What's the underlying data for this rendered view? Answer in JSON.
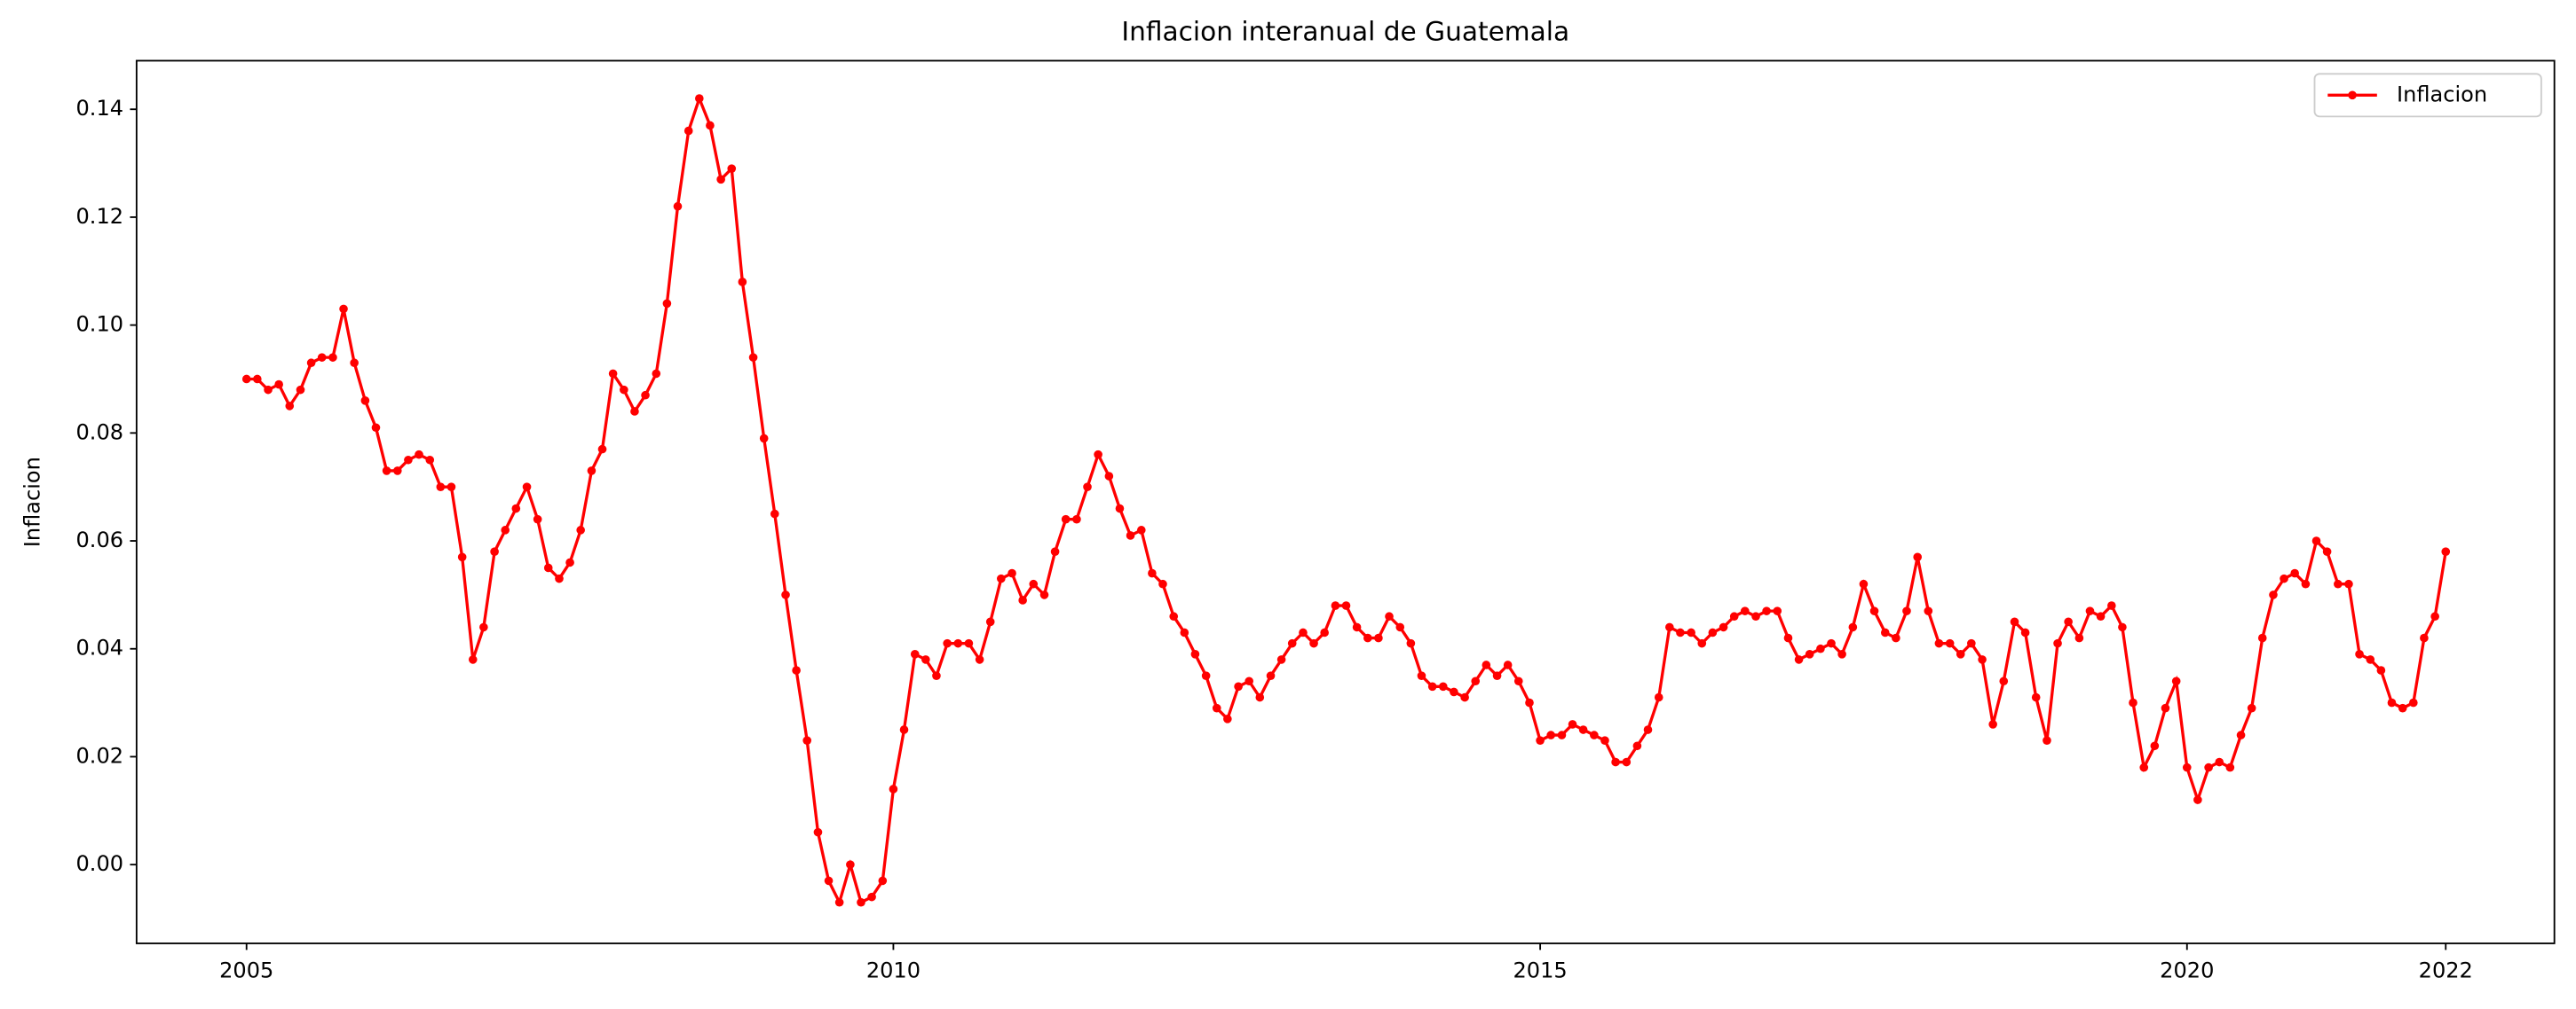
{
  "chart_data": {
    "type": "line",
    "title": "Inflacion interanual de Guatemala",
    "y_label": "Inflacion",
    "x": [
      2005,
      2005.083,
      2005.167,
      2005.25,
      2005.333,
      2005.417,
      2005.5,
      2005.583,
      2005.667,
      2005.75,
      2005.833,
      2005.917,
      2006,
      2006.083,
      2006.167,
      2006.25,
      2006.333,
      2006.417,
      2006.5,
      2006.583,
      2006.667,
      2006.75,
      2006.833,
      2006.917,
      2007,
      2007.083,
      2007.167,
      2007.25,
      2007.333,
      2007.417,
      2007.5,
      2007.583,
      2007.667,
      2007.75,
      2007.833,
      2007.917,
      2008,
      2008.083,
      2008.167,
      2008.25,
      2008.333,
      2008.417,
      2008.5,
      2008.583,
      2008.667,
      2008.75,
      2008.833,
      2008.917,
      2009,
      2009.083,
      2009.167,
      2009.25,
      2009.333,
      2009.417,
      2009.5,
      2009.583,
      2009.667,
      2009.75,
      2009.833,
      2009.917,
      2010,
      2010.083,
      2010.167,
      2010.25,
      2010.333,
      2010.417,
      2010.5,
      2010.583,
      2010.667,
      2010.75,
      2010.833,
      2010.917,
      2011,
      2011.083,
      2011.167,
      2011.25,
      2011.333,
      2011.417,
      2011.5,
      2011.583,
      2011.667,
      2011.75,
      2011.833,
      2011.917,
      2012,
      2012.083,
      2012.167,
      2012.25,
      2012.333,
      2012.417,
      2012.5,
      2012.583,
      2012.667,
      2012.75,
      2012.833,
      2012.917,
      2013,
      2013.083,
      2013.167,
      2013.25,
      2013.333,
      2013.417,
      2013.5,
      2013.583,
      2013.667,
      2013.75,
      2013.833,
      2013.917,
      2014,
      2014.083,
      2014.167,
      2014.25,
      2014.333,
      2014.417,
      2014.5,
      2014.583,
      2014.667,
      2014.75,
      2014.833,
      2014.917,
      2015,
      2015.083,
      2015.167,
      2015.25,
      2015.333,
      2015.417,
      2015.5,
      2015.583,
      2015.667,
      2015.75,
      2015.833,
      2015.917,
      2016,
      2016.083,
      2016.167,
      2016.25,
      2016.333,
      2016.417,
      2016.5,
      2016.583,
      2016.667,
      2016.75,
      2016.833,
      2016.917,
      2017,
      2017.083,
      2017.167,
      2017.25,
      2017.333,
      2017.417,
      2017.5,
      2017.583,
      2017.667,
      2017.75,
      2017.833,
      2017.917,
      2018,
      2018.083,
      2018.167,
      2018.25,
      2018.333,
      2018.417,
      2018.5,
      2018.583,
      2018.667,
      2018.75,
      2018.833,
      2018.917,
      2019,
      2019.083,
      2019.167,
      2019.25,
      2019.333,
      2019.417,
      2019.5,
      2019.583,
      2019.667,
      2019.75,
      2019.833,
      2019.917,
      2020,
      2020.083,
      2020.167,
      2020.25,
      2020.333,
      2020.417,
      2020.5,
      2020.583,
      2020.667,
      2020.75,
      2020.833,
      2020.917,
      2021,
      2021.083,
      2021.167,
      2021.25,
      2021.333,
      2021.417,
      2021.5,
      2021.583,
      2021.667,
      2021.75,
      2021.833,
      2021.917,
      2022
    ],
    "series": [
      {
        "name": "Inflacion",
        "color": "#ff0000",
        "values": [
          0.09,
          0.09,
          0.088,
          0.089,
          0.085,
          0.088,
          0.093,
          0.094,
          0.094,
          0.103,
          0.093,
          0.086,
          0.081,
          0.073,
          0.073,
          0.075,
          0.076,
          0.075,
          0.07,
          0.07,
          0.057,
          0.038,
          0.044,
          0.058,
          0.062,
          0.066,
          0.07,
          0.064,
          0.055,
          0.053,
          0.056,
          0.062,
          0.073,
          0.077,
          0.091,
          0.088,
          0.084,
          0.087,
          0.091,
          0.104,
          0.122,
          0.136,
          0.142,
          0.137,
          0.127,
          0.129,
          0.108,
          0.094,
          0.079,
          0.065,
          0.05,
          0.036,
          0.023,
          0.006,
          -0.003,
          -0.007,
          0.0,
          -0.007,
          -0.006,
          -0.003,
          0.014,
          0.025,
          0.039,
          0.038,
          0.035,
          0.041,
          0.041,
          0.041,
          0.038,
          0.045,
          0.053,
          0.054,
          0.049,
          0.052,
          0.05,
          0.058,
          0.064,
          0.064,
          0.07,
          0.076,
          0.072,
          0.066,
          0.061,
          0.062,
          0.054,
          0.052,
          0.046,
          0.043,
          0.039,
          0.035,
          0.029,
          0.027,
          0.033,
          0.034,
          0.031,
          0.035,
          0.038,
          0.041,
          0.043,
          0.041,
          0.043,
          0.048,
          0.048,
          0.044,
          0.042,
          0.042,
          0.046,
          0.044,
          0.041,
          0.035,
          0.033,
          0.033,
          0.032,
          0.031,
          0.034,
          0.037,
          0.035,
          0.037,
          0.034,
          0.03,
          0.023,
          0.024,
          0.024,
          0.026,
          0.025,
          0.024,
          0.023,
          0.019,
          0.019,
          0.022,
          0.025,
          0.031,
          0.044,
          0.043,
          0.043,
          0.041,
          0.043,
          0.044,
          0.046,
          0.047,
          0.046,
          0.047,
          0.047,
          0.042,
          0.038,
          0.039,
          0.04,
          0.041,
          0.039,
          0.044,
          0.052,
          0.047,
          0.043,
          0.042,
          0.047,
          0.057,
          0.047,
          0.041,
          0.041,
          0.039,
          0.041,
          0.038,
          0.026,
          0.034,
          0.045,
          0.043,
          0.031,
          0.023,
          0.041,
          0.045,
          0.042,
          0.047,
          0.046,
          0.048,
          0.044,
          0.03,
          0.018,
          0.022,
          0.029,
          0.034,
          0.018,
          0.012,
          0.018,
          0.019,
          0.018,
          0.024,
          0.029,
          0.042,
          0.05,
          0.053,
          0.054,
          0.052,
          0.06,
          0.058,
          0.052,
          0.052,
          0.039,
          0.038,
          0.036,
          0.03,
          0.029,
          0.03,
          0.042,
          0.046,
          0.058
        ]
      }
    ],
    "xlim": [
      2004.15,
      2022.84
    ],
    "ylim": [
      -0.0146,
      0.149
    ],
    "xticks": [
      2005,
      2010,
      2015,
      2020,
      2022
    ],
    "yticks": [
      {
        "value": 0,
        "label": "0.00"
      },
      0.02,
      0.04,
      0.06,
      0.08,
      {
        "value": 0.1,
        "label": "0.10"
      },
      0.12,
      0.14
    ],
    "legend": "upper right",
    "marker": true
  }
}
